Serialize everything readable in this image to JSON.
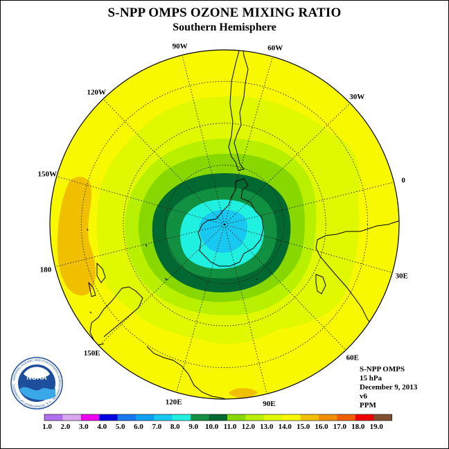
{
  "header": {
    "title": "S-NPP OMPS OZONE MIXING RATIO",
    "subtitle": "Southern Hemisphere"
  },
  "map": {
    "projection": "polar stereographic (south pole)",
    "meridians": [
      {
        "label": "0",
        "lon": 0
      },
      {
        "label": "30E",
        "lon": 30
      },
      {
        "label": "60E",
        "lon": 60
      },
      {
        "label": "90E",
        "lon": 90
      },
      {
        "label": "120E",
        "lon": 120
      },
      {
        "label": "150E",
        "lon": 150
      },
      {
        "label": "180",
        "lon": 180
      },
      {
        "label": "150W",
        "lon": -150
      },
      {
        "label": "120W",
        "lon": -120
      },
      {
        "label": "90W",
        "lon": -90
      },
      {
        "label": "60W",
        "lon": -60
      },
      {
        "label": "30W",
        "lon": -30
      }
    ]
  },
  "info": {
    "instrument": "S-NPP OMPS",
    "level": "15 hPa",
    "date": "December 9, 2013",
    "version": "v6",
    "units": "PPM"
  },
  "logo": {
    "text": "NOAA",
    "ring_text": "NATIONAL OCEANIC AND ATMOSPHERIC ADMINISTRATION · U.S. DEPARTMENT OF COMMERCE"
  },
  "colorbar": {
    "labels": [
      "1.0",
      "2.0",
      "3.0",
      "4.0",
      "5.0",
      "6.0",
      "7.0",
      "8.0",
      "9.0",
      "10.0",
      "11.0",
      "12.0",
      "13.0",
      "14.0",
      "15.0",
      "16.0",
      "17.0",
      "18.0",
      "19.0"
    ],
    "colors": [
      "#b070f0",
      "#d8a8f0",
      "#f000f0",
      "#0000e0",
      "#1878f0",
      "#10a0f0",
      "#18c8f0",
      "#20f0e0",
      "#109040",
      "#006830",
      "#88d800",
      "#b8f000",
      "#e0f800",
      "#f8f800",
      "#f0c000",
      "#f09000",
      "#f06000",
      "#f00000",
      "#805030"
    ]
  }
}
